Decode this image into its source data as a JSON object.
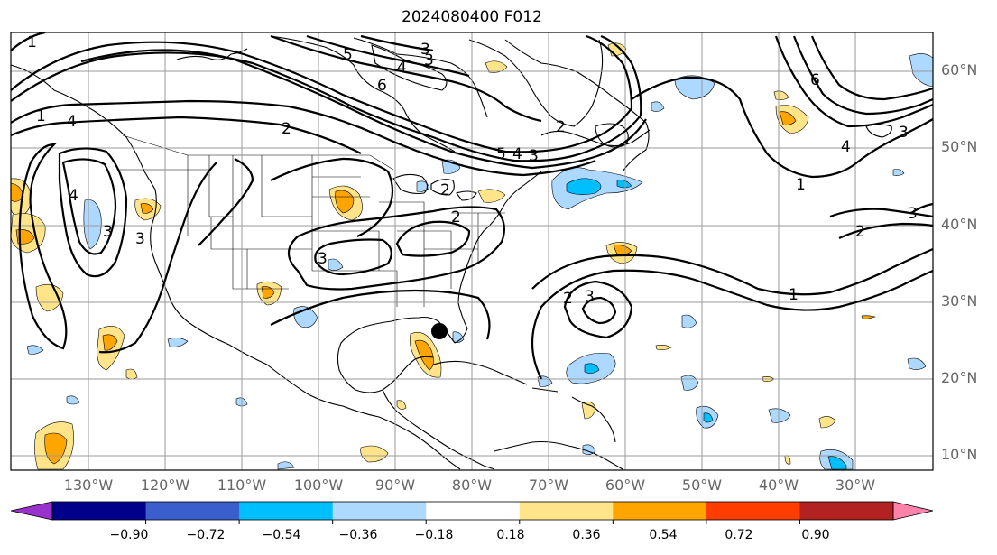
{
  "title": "2024080400 F012",
  "lat_labels": [
    "60°N",
    "50°N",
    "40°N",
    "30°N",
    "20°N",
    "10°N"
  ],
  "lon_labels": [
    "130°W",
    "120°W",
    "110°W",
    "100°W",
    "90°W",
    "80°W",
    "70°W",
    "60°W",
    "50°W",
    "40°W",
    "30°W"
  ],
  "colorbar": {
    "tick_labels": [
      "−0.90",
      "−0.72",
      "−0.54",
      "−0.36",
      "−0.18",
      "0.18",
      "0.36",
      "0.54",
      "0.72",
      "0.90"
    ],
    "colors": [
      "#9932cc",
      "#00008b",
      "#3a5fcd",
      "#00bfff",
      "#add8ff",
      "#ffffff",
      "#ffe48a",
      "#ffa500",
      "#ff3d00",
      "#b22222",
      "#ff82ab"
    ]
  },
  "contour_labels": [
    "1",
    "1",
    "4",
    "3",
    "2",
    "5",
    "4",
    "3",
    "6",
    "4",
    "3",
    "5",
    "4",
    "3",
    "2",
    "2",
    "3",
    "2",
    "2",
    "3",
    "1",
    "1",
    "6",
    "4",
    "3",
    "3",
    "2",
    "3",
    "1"
  ],
  "storm_marker": {
    "name": "storm-center",
    "lat": 26.2,
    "lon": -84.5
  }
}
